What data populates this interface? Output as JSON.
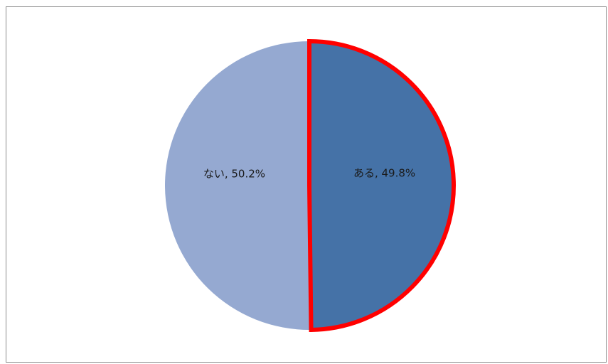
{
  "chart_data": {
    "type": "pie",
    "categories": [
      "ない",
      "ある"
    ],
    "values": [
      50.2,
      49.8
    ],
    "unit": "%",
    "colors": [
      "#95a9d1",
      "#4572a7"
    ],
    "labels": [
      "ない, 50.2%",
      "ある, 49.8%"
    ],
    "highlight": {
      "category": "ある",
      "outline_color": "#ff0000"
    },
    "legend": "none",
    "start": "top",
    "direction": "clockwise"
  }
}
